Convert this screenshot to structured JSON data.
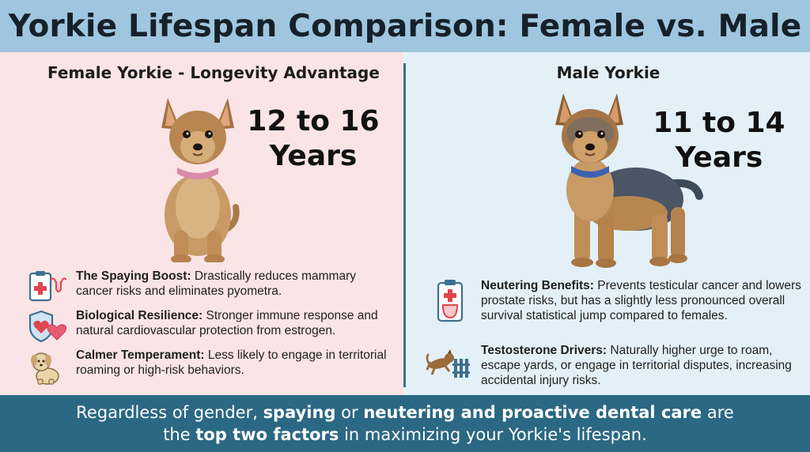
{
  "header": {
    "title": "Yorkie Lifespan Comparison: Female vs. Male"
  },
  "female": {
    "title": "Female Yorkie - Longevity Advantage",
    "lifespan_line1": "12 to 16",
    "lifespan_line2": "Years",
    "points": [
      {
        "icon": "clipboard-reproductive-icon",
        "bold": "The Spaying Boost:",
        "text": " Drastically reduces mammary cancer risks and eliminates pyometra."
      },
      {
        "icon": "shield-heart-icon",
        "bold": "Biological Resilience:",
        "text": " Stronger immune response and natural cardiovascular protection from estrogen."
      },
      {
        "icon": "calm-puppy-icon",
        "bold": "Calmer Temperament:",
        "text": " Less likely to engage in territorial roaming or high-risk behaviors."
      }
    ]
  },
  "male": {
    "title": "Male Yorkie",
    "lifespan_line1": "11 to 14",
    "lifespan_line2": "Years",
    "points": [
      {
        "icon": "clipboard-medical-icon",
        "bold": "Neutering Benefits:",
        "text": " Prevents testicular cancer and lowers prostate risks, but has a slightly less pronounced overall survival statistical jump compared to females."
      },
      {
        "icon": "dog-jumping-fence-icon",
        "bold": "Testosterone Drivers:",
        "text": " Naturally higher urge to roam, escape yards, or engage in territorial disputes, increasing accidental injury risks."
      }
    ]
  },
  "footer": {
    "part1": "Regardless of gender, ",
    "bold1": "spaying",
    "part2": " or ",
    "bold2": "neutering and proactive dental care",
    "part3": " are",
    "part4": "the ",
    "bold3": "top two factors",
    "part5": " in maximizing your Yorkie's lifespan."
  },
  "colors": {
    "header_bg": "#9fc6de",
    "female_bg": "#fbe4e6",
    "male_bg": "#e3f0f8",
    "footer_bg": "#2b6883",
    "accent_red": "#e0464f",
    "divider": "#3c6f8c"
  }
}
